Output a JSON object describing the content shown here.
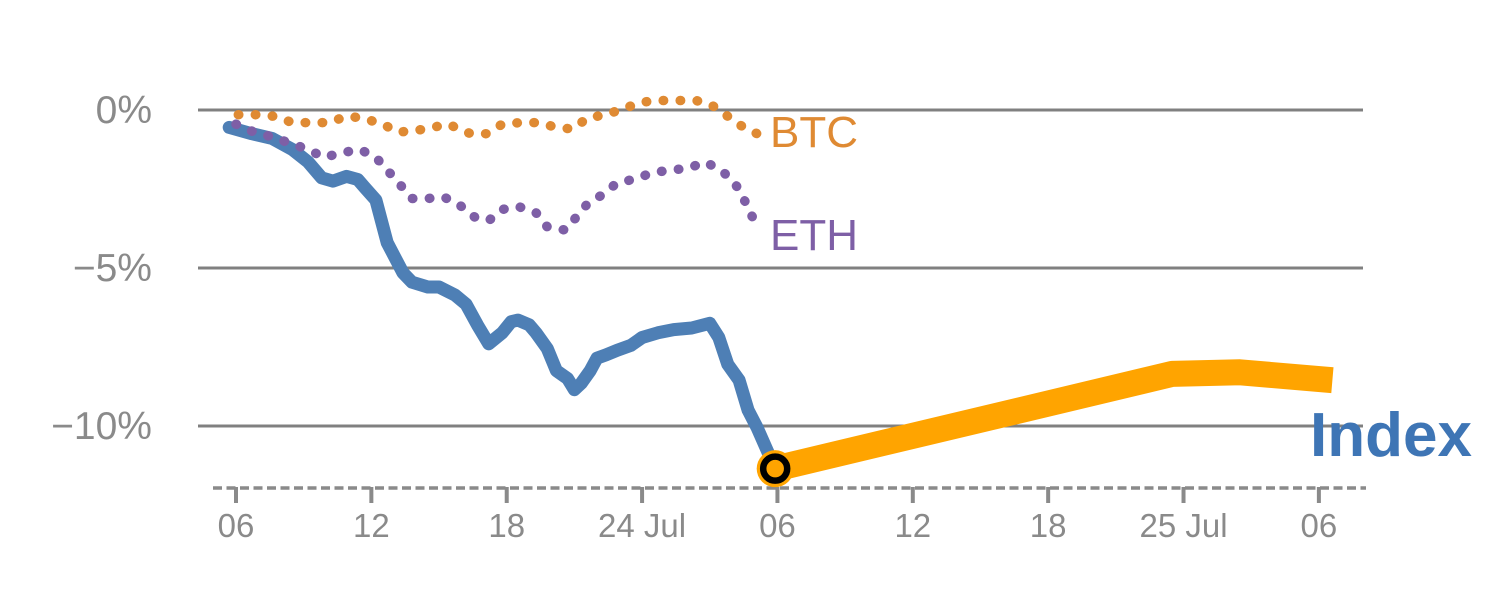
{
  "chart_data": {
    "type": "line",
    "title": "",
    "description": "Intraday percent-change comparison of BTC, ETH and an Index, with a thick forecast/continuation band after the current point",
    "x_axis": {
      "unit": "hour",
      "tick_hours": [
        0,
        6,
        12,
        18,
        24,
        30,
        36,
        42,
        48
      ],
      "tick_labels": [
        "06",
        "12",
        "18",
        "24 Jul",
        "06",
        "12",
        "18",
        "25 Jul",
        "06"
      ],
      "axis_style": "dashed"
    },
    "y_axis": {
      "unit": "percent change",
      "tick_values": [
        0,
        -5,
        -10
      ],
      "tick_labels": [
        "0%",
        "−5%",
        "−10%"
      ],
      "range_shown": [
        -12,
        0.8
      ],
      "grid": "horizontal solid gray"
    },
    "colors": {
      "index": "#4e7fb5",
      "index_label": "#3e75b5",
      "forecast": "#ffa400",
      "btc": "#df8a33",
      "eth": "#7e5fa6",
      "axis_gray": "#8a8a8a",
      "grid_gray": "#808080",
      "marker_edge": "#000000",
      "marker_face": "#ffa400"
    },
    "series": [
      {
        "name": "index",
        "label": "Index",
        "line_style": "solid-thick",
        "color": "#4e7fb5",
        "points": [
          [
            -0.3,
            -0.55
          ],
          [
            0.7,
            -0.75
          ],
          [
            1.6,
            -0.9
          ],
          [
            2.5,
            -1.25
          ],
          [
            3.2,
            -1.65
          ],
          [
            3.8,
            -2.15
          ],
          [
            4.3,
            -2.25
          ],
          [
            4.9,
            -2.1
          ],
          [
            5.4,
            -2.2
          ],
          [
            5.7,
            -2.45
          ],
          [
            6.2,
            -2.85
          ],
          [
            6.7,
            -4.2
          ],
          [
            7.4,
            -5.15
          ],
          [
            7.8,
            -5.45
          ],
          [
            8.5,
            -5.6
          ],
          [
            9,
            -5.6
          ],
          [
            9.7,
            -5.85
          ],
          [
            10.2,
            -6.15
          ],
          [
            10.7,
            -6.8
          ],
          [
            11.2,
            -7.4
          ],
          [
            11.8,
            -7.05
          ],
          [
            12.2,
            -6.7
          ],
          [
            12.5,
            -6.65
          ],
          [
            13,
            -6.8
          ],
          [
            13.3,
            -7.05
          ],
          [
            13.8,
            -7.55
          ],
          [
            14.2,
            -8.25
          ],
          [
            14.7,
            -8.5
          ],
          [
            15,
            -8.85
          ],
          [
            15.3,
            -8.65
          ],
          [
            15.7,
            -8.25
          ],
          [
            16,
            -7.85
          ],
          [
            16.4,
            -7.75
          ],
          [
            16.9,
            -7.6
          ],
          [
            17.5,
            -7.45
          ],
          [
            18,
            -7.2
          ],
          [
            18.7,
            -7.05
          ],
          [
            19.4,
            -6.95
          ],
          [
            20.2,
            -6.9
          ],
          [
            21,
            -6.75
          ],
          [
            21.4,
            -7.2
          ],
          [
            21.8,
            -8.05
          ],
          [
            22.3,
            -8.55
          ],
          [
            22.7,
            -9.5
          ],
          [
            23.1,
            -10.05
          ],
          [
            23.9,
            -11.35
          ]
        ]
      },
      {
        "name": "index_forecast",
        "label": "",
        "line_style": "band-thick",
        "color": "#ffa400",
        "points": [
          [
            23.9,
            -11.35
          ],
          [
            41.5,
            -8.35
          ],
          [
            44.5,
            -8.3
          ],
          [
            48.6,
            -8.55
          ]
        ]
      },
      {
        "name": "btc",
        "label": "BTC",
        "line_style": "dotted",
        "color": "#df8a33",
        "points": [
          [
            0.1,
            -0.15
          ],
          [
            0.9,
            -0.15
          ],
          [
            1.7,
            -0.2
          ],
          [
            2.5,
            -0.4
          ],
          [
            3.4,
            -0.4
          ],
          [
            4.1,
            -0.4
          ],
          [
            4.9,
            -0.2
          ],
          [
            5.6,
            -0.25
          ],
          [
            6.5,
            -0.45
          ],
          [
            7.2,
            -0.7
          ],
          [
            8,
            -0.65
          ],
          [
            8.7,
            -0.55
          ],
          [
            9.4,
            -0.45
          ],
          [
            10.4,
            -0.75
          ],
          [
            11.1,
            -0.75
          ],
          [
            11.8,
            -0.45
          ],
          [
            12.6,
            -0.4
          ],
          [
            13.4,
            -0.4
          ],
          [
            14.2,
            -0.55
          ],
          [
            14.9,
            -0.6
          ],
          [
            15.6,
            -0.25
          ],
          [
            16.4,
            -0.15
          ],
          [
            17.2,
            0.05
          ],
          [
            18,
            0.25
          ],
          [
            18.8,
            0.3
          ],
          [
            19.6,
            0.3
          ],
          [
            20.4,
            0.3
          ],
          [
            21.1,
            0.15
          ],
          [
            21.8,
            -0.2
          ],
          [
            22.5,
            -0.55
          ],
          [
            23.1,
            -0.75
          ]
        ]
      },
      {
        "name": "eth",
        "label": "ETH",
        "line_style": "dotted",
        "color": "#7e5fa6",
        "points": [
          [
            0,
            -0.45
          ],
          [
            0.8,
            -0.7
          ],
          [
            1.6,
            -0.85
          ],
          [
            2.4,
            -1.05
          ],
          [
            3.2,
            -1.25
          ],
          [
            3.9,
            -1.5
          ],
          [
            4.7,
            -1.35
          ],
          [
            5.5,
            -1.25
          ],
          [
            6.2,
            -1.5
          ],
          [
            6.7,
            -1.9
          ],
          [
            7.2,
            -2.3
          ],
          [
            7.8,
            -2.8
          ],
          [
            8.5,
            -2.8
          ],
          [
            9.2,
            -2.75
          ],
          [
            9.9,
            -3
          ],
          [
            10.6,
            -3.4
          ],
          [
            11.2,
            -3.5
          ],
          [
            11.8,
            -3.15
          ],
          [
            12.5,
            -3.05
          ],
          [
            13.3,
            -3.25
          ],
          [
            13.8,
            -3.7
          ],
          [
            14.6,
            -3.8
          ],
          [
            15.6,
            -2.95
          ],
          [
            16.2,
            -2.7
          ],
          [
            16.9,
            -2.3
          ],
          [
            17.6,
            -2.2
          ],
          [
            18.4,
            -2
          ],
          [
            19.2,
            -1.9
          ],
          [
            20,
            -1.85
          ],
          [
            20.8,
            -1.65
          ],
          [
            21.5,
            -1.9
          ],
          [
            22.1,
            -2.3
          ],
          [
            22.5,
            -2.8
          ],
          [
            22.9,
            -3.4
          ],
          [
            23.3,
            -3.7
          ]
        ]
      }
    ],
    "marker": {
      "h": 23.9,
      "pct": -11.35,
      "meaning": "current point at junction of realized line and forecast band"
    }
  }
}
